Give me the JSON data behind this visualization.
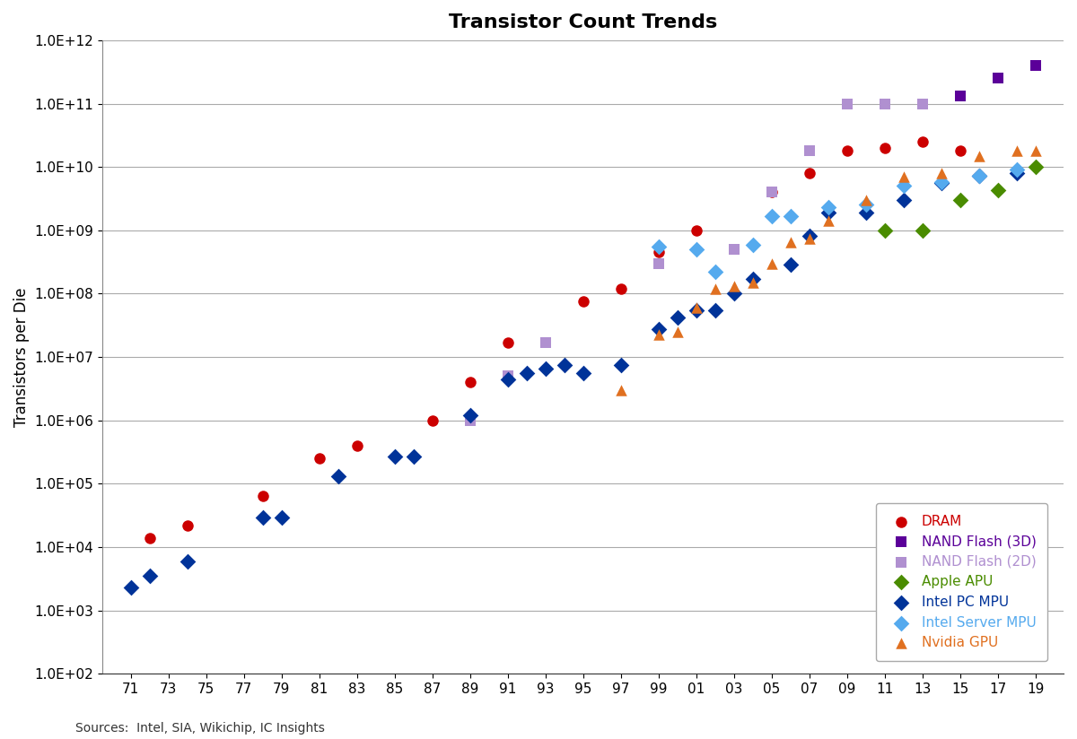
{
  "title": "Transistor Count Trends",
  "xlabel": "",
  "ylabel": "Transistors per Die",
  "source_text": "Sources:  Intel, SIA, Wikichip, IC Insights",
  "background_color": "#ffffff",
  "series": {
    "DRAM": {
      "color": "#cc0000",
      "marker": "o",
      "markersize": 9,
      "label": "DRAM",
      "data": [
        [
          72,
          14000
        ],
        [
          74,
          22000
        ],
        [
          78,
          65000
        ],
        [
          81,
          250000
        ],
        [
          83,
          400000
        ],
        [
          87,
          1000000
        ],
        [
          89,
          4000000
        ],
        [
          91,
          17000000
        ],
        [
          95,
          75000000
        ],
        [
          97,
          120000000
        ],
        [
          99,
          450000000
        ],
        [
          101,
          1000000000
        ],
        [
          105,
          4000000000
        ],
        [
          107,
          8000000000
        ],
        [
          109,
          18000000000
        ],
        [
          111,
          20000000000
        ],
        [
          113,
          25000000000
        ],
        [
          115,
          18000000000
        ]
      ]
    },
    "NAND Flash (3D)": {
      "color": "#5b0099",
      "marker": "s",
      "markersize": 9,
      "label": "NAND Flash (3D)",
      "data": [
        [
          113,
          100000000000
        ],
        [
          115,
          130000000000
        ],
        [
          117,
          250000000000
        ],
        [
          119,
          400000000000
        ]
      ]
    },
    "NAND Flash (2D)": {
      "color": "#b090d0",
      "marker": "s",
      "markersize": 9,
      "label": "NAND Flash (2D)",
      "data": [
        [
          89,
          1000000
        ],
        [
          91,
          5000000
        ],
        [
          93,
          17000000
        ],
        [
          99,
          300000000
        ],
        [
          103,
          500000000
        ],
        [
          105,
          4000000000
        ],
        [
          107,
          18000000000
        ],
        [
          109,
          100000000000
        ],
        [
          111,
          100000000000
        ],
        [
          113,
          100000000000
        ]
      ]
    },
    "Apple APU": {
      "color": "#4a8c00",
      "marker": "D",
      "markersize": 9,
      "label": "Apple APU",
      "data": [
        [
          111,
          1000000000
        ],
        [
          113,
          1000000000
        ],
        [
          115,
          3000000000
        ],
        [
          117,
          4300000000
        ],
        [
          119,
          10000000000
        ]
      ]
    },
    "Intel PC MPU": {
      "color": "#003399",
      "marker": "D",
      "markersize": 9,
      "label": "Intel PC MPU",
      "data": [
        [
          71,
          2300
        ],
        [
          72,
          3500
        ],
        [
          74,
          6000
        ],
        [
          78,
          29000
        ],
        [
          79,
          29000
        ],
        [
          82,
          130000
        ],
        [
          85,
          270000
        ],
        [
          86,
          270000
        ],
        [
          89,
          1200000
        ],
        [
          91,
          4500000
        ],
        [
          92,
          5500000
        ],
        [
          93,
          6500000
        ],
        [
          94,
          7500000
        ],
        [
          95,
          5500000
        ],
        [
          97,
          7500000
        ],
        [
          99,
          28000000
        ],
        [
          100,
          42000000
        ],
        [
          101,
          55000000
        ],
        [
          102,
          55000000
        ],
        [
          103,
          100000000
        ],
        [
          104,
          170000000
        ],
        [
          106,
          290000000
        ],
        [
          107,
          820000000
        ],
        [
          108,
          1900000000
        ],
        [
          110,
          1900000000
        ],
        [
          112,
          3000000000
        ],
        [
          114,
          5600000000
        ],
        [
          116,
          7200000000
        ],
        [
          118,
          8000000000
        ]
      ]
    },
    "Intel Server MPU": {
      "color": "#55aaee",
      "marker": "D",
      "markersize": 9,
      "label": "Intel Server MPU",
      "data": [
        [
          99,
          550000000
        ],
        [
          101,
          500000000
        ],
        [
          102,
          220000000
        ],
        [
          104,
          590000000
        ],
        [
          105,
          1700000000
        ],
        [
          106,
          1700000000
        ],
        [
          108,
          2300000000
        ],
        [
          110,
          2600000000
        ],
        [
          112,
          5000000000
        ],
        [
          114,
          5700000000
        ],
        [
          116,
          7200000000
        ],
        [
          118,
          9000000000
        ]
      ]
    },
    "Nvidia GPU": {
      "color": "#e07020",
      "marker": "^",
      "markersize": 9,
      "label": "Nvidia GPU",
      "data": [
        [
          97,
          3000000
        ],
        [
          99,
          23000000
        ],
        [
          100,
          25000000
        ],
        [
          101,
          60000000
        ],
        [
          102,
          120000000
        ],
        [
          103,
          130000000
        ],
        [
          104,
          150000000
        ],
        [
          105,
          300000000
        ],
        [
          106,
          650000000
        ],
        [
          107,
          750000000
        ],
        [
          108,
          1400000000
        ],
        [
          110,
          3000000000
        ],
        [
          112,
          7100000000
        ],
        [
          114,
          8000000000
        ],
        [
          116,
          15000000000
        ],
        [
          118,
          18000000000
        ],
        [
          119,
          18000000000
        ]
      ]
    }
  }
}
